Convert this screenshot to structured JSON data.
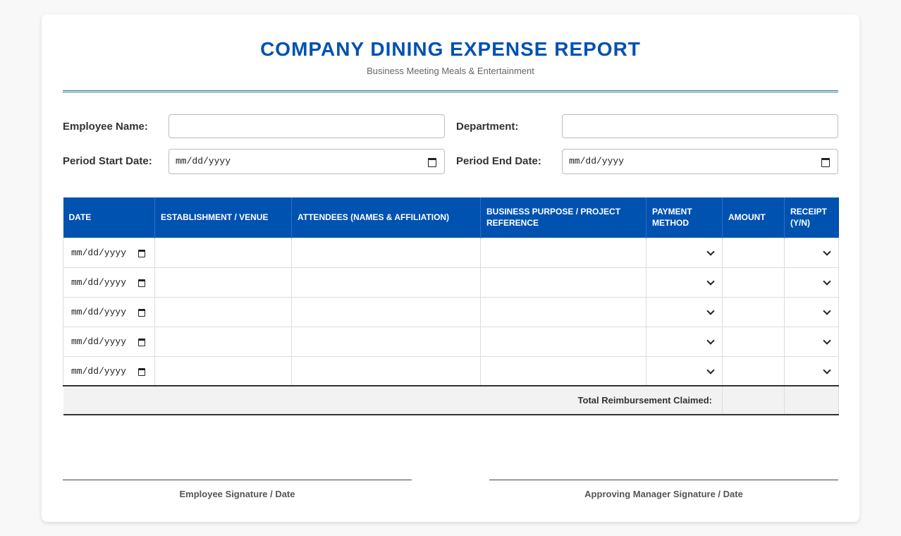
{
  "header": {
    "title": "COMPANY DINING EXPENSE REPORT",
    "subtitle": "Business Meeting Meals & Entertainment"
  },
  "form": {
    "employee_name_label": "Employee Name:",
    "employee_name_value": "",
    "department_label": "Department:",
    "department_value": "",
    "period_start_label": "Period Start Date:",
    "period_start_value": "mm/dd/yyyy",
    "period_end_label": "Period End Date:",
    "period_end_value": "mm/dd/yyyy"
  },
  "table": {
    "columns": [
      "DATE",
      "ESTABLISHMENT / VENUE",
      "ATTENDEES (NAMES & AFFILIATION)",
      "BUSINESS PURPOSE / PROJECT REFERENCE",
      "PAYMENT METHOD",
      "AMOUNT",
      "RECEIPT (Y/N)"
    ],
    "rows": [
      {
        "date": "mm/dd/yyyy",
        "venue": "",
        "attendees": "",
        "purpose": "",
        "payment": "",
        "amount": "",
        "receipt": ""
      },
      {
        "date": "mm/dd/yyyy",
        "venue": "",
        "attendees": "",
        "purpose": "",
        "payment": "",
        "amount": "",
        "receipt": ""
      },
      {
        "date": "mm/dd/yyyy",
        "venue": "",
        "attendees": "",
        "purpose": "",
        "payment": "",
        "amount": "",
        "receipt": ""
      },
      {
        "date": "mm/dd/yyyy",
        "venue": "",
        "attendees": "",
        "purpose": "",
        "payment": "",
        "amount": "",
        "receipt": ""
      },
      {
        "date": "mm/dd/yyyy",
        "venue": "",
        "attendees": "",
        "purpose": "",
        "payment": "",
        "amount": "",
        "receipt": ""
      }
    ],
    "total_label": "Total Reimbursement Claimed:",
    "total_value": ""
  },
  "signatures": {
    "employee": "Employee Signature / Date",
    "manager": "Approving Manager Signature / Date"
  },
  "colors": {
    "accent": "#0052b0",
    "rule": "#2e7d8c"
  },
  "icons": {
    "date_picker": "calendar-icon",
    "select": "chevron-down-icon"
  }
}
